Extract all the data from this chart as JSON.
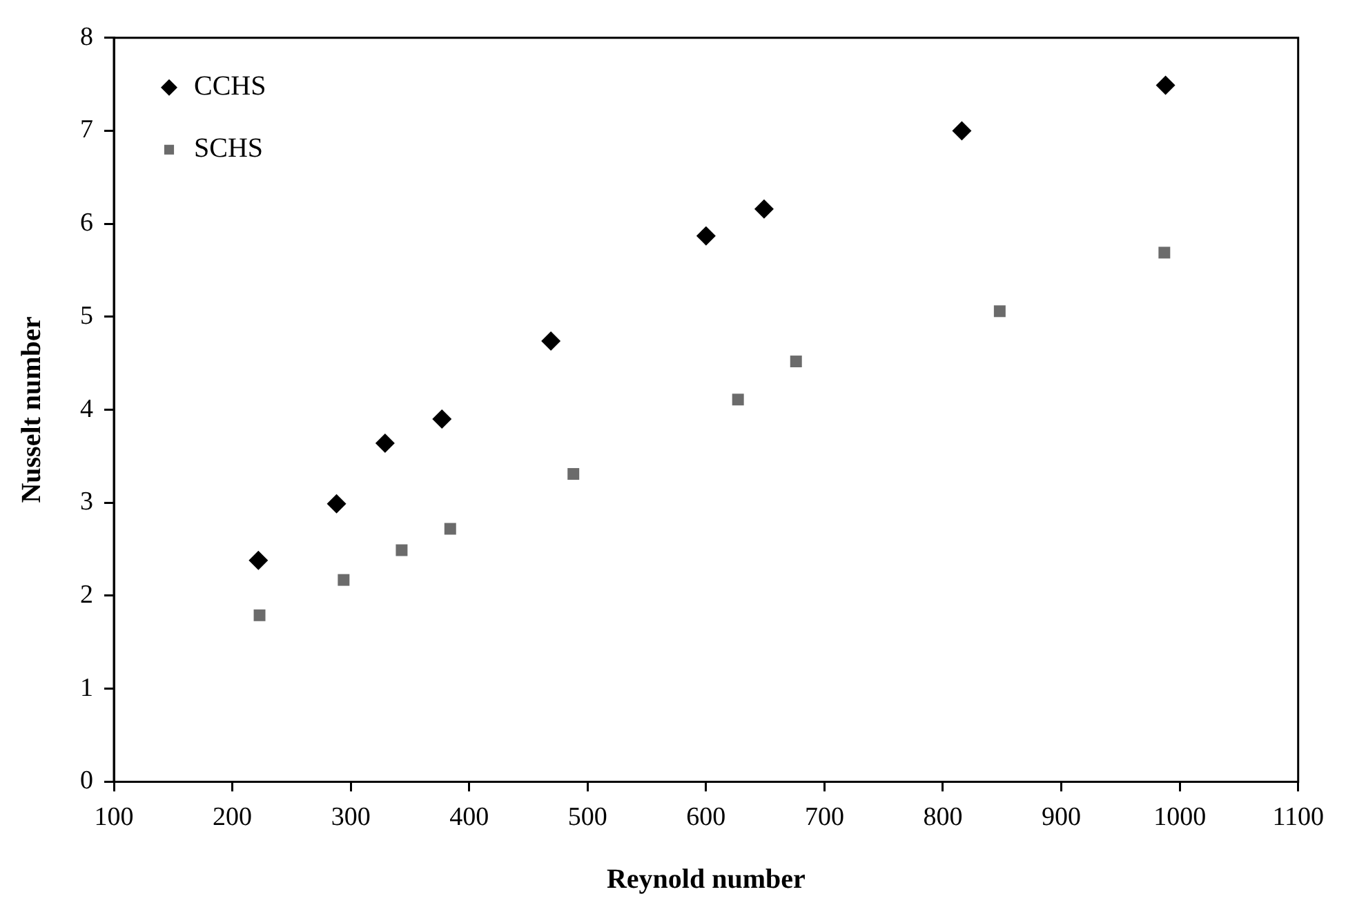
{
  "chart_data": {
    "type": "scatter",
    "xlabel": "Reynold number",
    "ylabel": "Nusselt number",
    "xlim": [
      100,
      1100
    ],
    "xticks": [
      100,
      200,
      300,
      400,
      500,
      600,
      700,
      800,
      900,
      1000,
      1100
    ],
    "ylim": [
      0,
      8
    ],
    "yticks": [
      0,
      1,
      2,
      3,
      4,
      5,
      6,
      7,
      8
    ],
    "grid": false,
    "legend": "top left",
    "series": [
      {
        "name": "CCHS",
        "color": "#000000",
        "marker": "diamond",
        "x": [
          222,
          288,
          329,
          377,
          469,
          600,
          649,
          816,
          988
        ],
        "values": [
          2.38,
          2.99,
          3.64,
          3.9,
          4.74,
          5.87,
          6.16,
          7.0,
          7.49
        ]
      },
      {
        "name": "SCHS",
        "color": "#6b6b6b",
        "marker": "square",
        "x": [
          223,
          294,
          343,
          384,
          488,
          627,
          676,
          848,
          987
        ],
        "values": [
          1.79,
          2.17,
          2.49,
          2.72,
          3.31,
          4.11,
          4.52,
          5.06,
          5.69
        ]
      }
    ]
  }
}
